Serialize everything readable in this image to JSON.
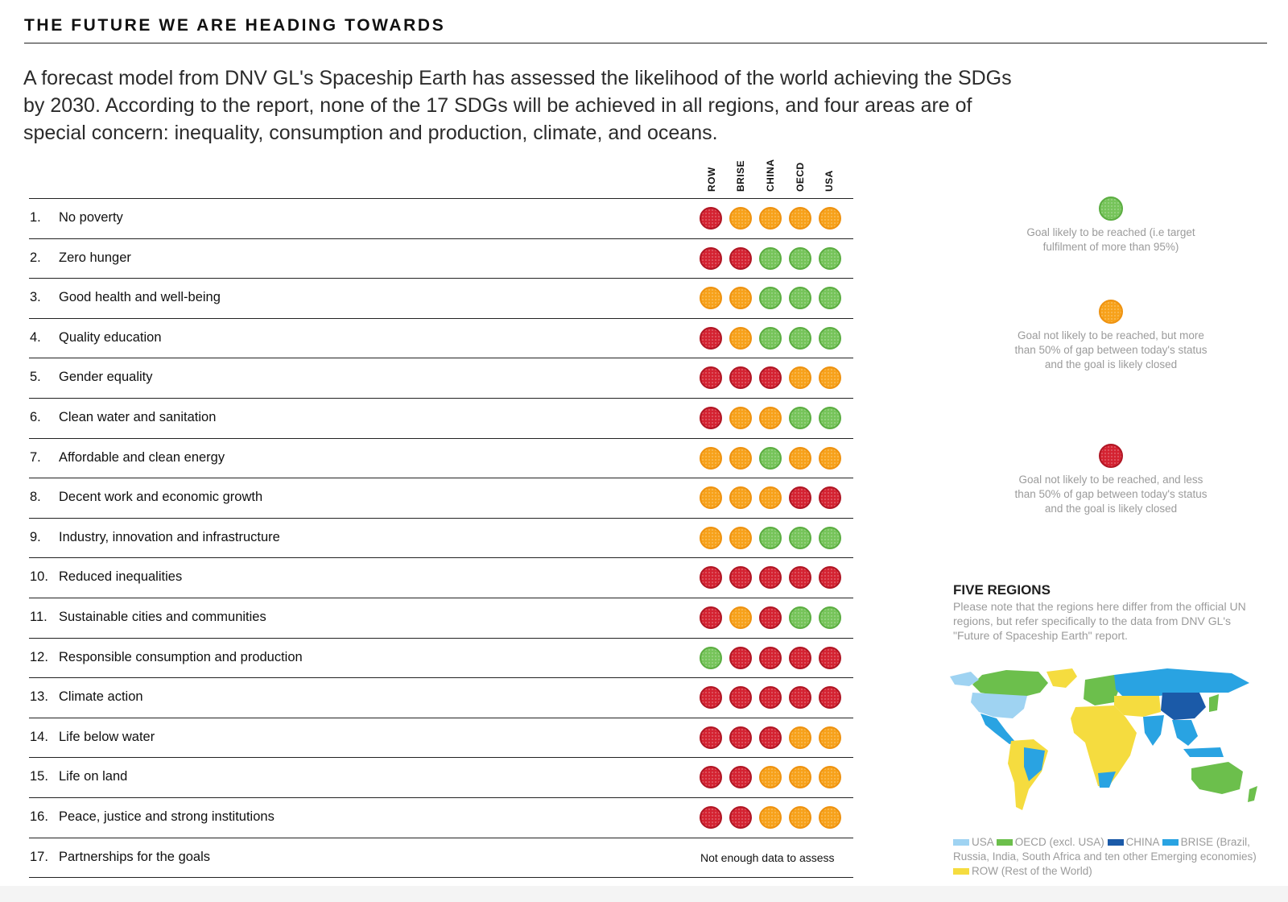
{
  "title": "THE FUTURE WE ARE HEADING TOWARDS",
  "intro": "A forecast model from DNV GL's Spaceship Earth has assessed the likelihood of the world achieving the SDGs by 2030. According to the report, none of the 17 SDGs will be achieved in all regions, and four areas are of special concern: inequality, consumption and production, climate, and oceans.",
  "columns": [
    "ROW",
    "BRISE",
    "CHINA",
    "OECD",
    "USA"
  ],
  "goals": [
    {
      "num": "1.",
      "label": "No poverty",
      "ratings": [
        "red",
        "orange",
        "orange",
        "orange",
        "orange"
      ]
    },
    {
      "num": "2.",
      "label": "Zero hunger",
      "ratings": [
        "red",
        "red",
        "green",
        "green",
        "green"
      ]
    },
    {
      "num": "3.",
      "label": "Good health and well-being",
      "ratings": [
        "orange",
        "orange",
        "green",
        "green",
        "green"
      ]
    },
    {
      "num": "4.",
      "label": "Quality education",
      "ratings": [
        "red",
        "orange",
        "green",
        "green",
        "green"
      ]
    },
    {
      "num": "5.",
      "label": "Gender equality",
      "ratings": [
        "red",
        "red",
        "red",
        "orange",
        "orange"
      ]
    },
    {
      "num": "6.",
      "label": "Clean water and sanitation",
      "ratings": [
        "red",
        "orange",
        "orange",
        "green",
        "green"
      ]
    },
    {
      "num": "7.",
      "label": "Affordable and clean energy",
      "ratings": [
        "orange",
        "orange",
        "green",
        "orange",
        "orange"
      ]
    },
    {
      "num": "8.",
      "label": "Decent work and economic growth",
      "ratings": [
        "orange",
        "orange",
        "orange",
        "red",
        "red"
      ]
    },
    {
      "num": "9.",
      "label": "Industry, innovation and infrastructure",
      "ratings": [
        "orange",
        "orange",
        "green",
        "green",
        "green"
      ]
    },
    {
      "num": "10.",
      "label": "Reduced inequalities",
      "ratings": [
        "red",
        "red",
        "red",
        "red",
        "red"
      ]
    },
    {
      "num": "11.",
      "label": "Sustainable cities and communities",
      "ratings": [
        "red",
        "orange",
        "red",
        "green",
        "green"
      ]
    },
    {
      "num": "12.",
      "label": "Responsible consumption and production",
      "ratings": [
        "green",
        "red",
        "red",
        "red",
        "red"
      ]
    },
    {
      "num": "13.",
      "label": "Climate action",
      "ratings": [
        "red",
        "red",
        "red",
        "red",
        "red"
      ]
    },
    {
      "num": "14.",
      "label": "Life below water",
      "ratings": [
        "red",
        "red",
        "red",
        "orange",
        "orange"
      ]
    },
    {
      "num": "15.",
      "label": "Life on land",
      "ratings": [
        "red",
        "red",
        "orange",
        "orange",
        "orange"
      ]
    },
    {
      "num": "16.",
      "label": "Peace, justice and strong institutions",
      "ratings": [
        "red",
        "red",
        "orange",
        "orange",
        "orange"
      ]
    },
    {
      "num": "17.",
      "label": "Partnerships for the goals",
      "ratings": [],
      "note": "Not enough data to assess"
    }
  ],
  "legend": [
    {
      "color": "green",
      "text": "Goal likely to be reached (i.e target fulfilment of more than 95%)"
    },
    {
      "color": "orange",
      "text": "Goal not likely to be reached, but more than 50% of gap between today's status and the goal is likely closed"
    },
    {
      "color": "red",
      "text": "Goal not likely to be reached, and less than 50% of gap between today's status and the goal is likely closed"
    }
  ],
  "regions": {
    "title": "FIVE REGIONS",
    "note": "Please note that the regions here differ from the official UN regions, but refer specifically to the data from DNV GL's \"Future of Spaceship Earth\" report.",
    "legend": [
      {
        "label": "USA",
        "color": "#9fd3f2"
      },
      {
        "label": "OECD (excl. USA)",
        "color": "#6cbf4c"
      },
      {
        "label": "CHINA",
        "color": "#1b5aa8"
      },
      {
        "label": "BRISE (Brazil, Russia, India, South Africa and ten other Emerging economies)",
        "color": "#29a3e2"
      },
      {
        "label": "ROW (Rest of the World)",
        "color": "#f5dc3f"
      }
    ]
  },
  "colors": {
    "red": "#d42231",
    "orange": "#f7a11a",
    "green": "#76c45a"
  }
}
